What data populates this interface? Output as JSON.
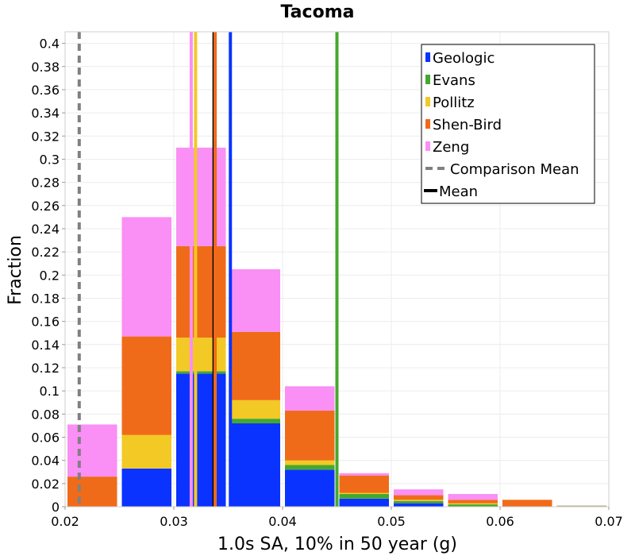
{
  "chart_data": {
    "type": "bar",
    "stacked": true,
    "title": "Tacoma",
    "xlabel": "1.0s SA, 10% in 50 year (g)",
    "ylabel": "Fraction",
    "xlim": [
      0.02,
      0.07
    ],
    "ylim": [
      0,
      0.41
    ],
    "grid": true,
    "legend_position": "top-right",
    "x_ticks": [
      "0.02",
      "0.03",
      "0.04",
      "0.05",
      "0.06",
      "0.07"
    ],
    "y_ticks": [
      "0",
      "0.02",
      "0.04",
      "0.06",
      "0.08",
      "0.1",
      "0.12",
      "0.14",
      "0.16",
      "0.18",
      "0.2",
      "0.22",
      "0.24",
      "0.26",
      "0.28",
      "0.3",
      "0.32",
      "0.34",
      "0.36",
      "0.38",
      "0.4"
    ],
    "bins": [
      {
        "x0": 0.02,
        "x1": 0.025
      },
      {
        "x0": 0.025,
        "x1": 0.03
      },
      {
        "x0": 0.03,
        "x1": 0.035
      },
      {
        "x0": 0.035,
        "x1": 0.04
      },
      {
        "x0": 0.04,
        "x1": 0.045
      },
      {
        "x0": 0.045,
        "x1": 0.05
      },
      {
        "x0": 0.05,
        "x1": 0.055
      },
      {
        "x0": 0.055,
        "x1": 0.06
      },
      {
        "x0": 0.06,
        "x1": 0.065
      },
      {
        "x0": 0.065,
        "x1": 0.07
      }
    ],
    "series": [
      {
        "name": "Geologic",
        "color": "#0a33ff",
        "values": [
          0.0,
          0.033,
          0.115,
          0.072,
          0.032,
          0.007,
          0.003,
          0.0,
          0.0,
          0.0
        ]
      },
      {
        "name": "Evans",
        "color": "#45a82e",
        "values": [
          0.0,
          0.0,
          0.002,
          0.004,
          0.004,
          0.004,
          0.002,
          0.002,
          0.0,
          0.0
        ]
      },
      {
        "name": "Pollitz",
        "color": "#f2c925",
        "values": [
          0.0,
          0.029,
          0.029,
          0.016,
          0.004,
          0.001,
          0.001,
          0.001,
          0.0,
          0.0
        ]
      },
      {
        "name": "Shen-Bird",
        "color": "#f06b19",
        "values": [
          0.026,
          0.085,
          0.079,
          0.059,
          0.043,
          0.015,
          0.004,
          0.003,
          0.006,
          0.0
        ]
      },
      {
        "name": "Zeng",
        "color": "#fa8ff5",
        "values": [
          0.045,
          0.103,
          0.085,
          0.054,
          0.021,
          0.002,
          0.005,
          0.005,
          0.0,
          0.0
        ]
      }
    ],
    "vertical_lines": [
      {
        "name": "Comparison Mean",
        "x": 0.0213,
        "color": "#808080",
        "style": "dashed"
      },
      {
        "name": "Mean",
        "x": 0.0337,
        "color": "#000000",
        "style": "solid"
      },
      {
        "name": "Geologic",
        "x": 0.0352,
        "color": "#0a33ff",
        "style": "solid",
        "legend": false
      },
      {
        "name": "Evans",
        "x": 0.045,
        "color": "#45a82e",
        "style": "solid",
        "legend": false
      },
      {
        "name": "Pollitz",
        "x": 0.032,
        "color": "#f2c925",
        "style": "solid",
        "legend": false
      },
      {
        "name": "Shen-Bird",
        "x": 0.0338,
        "color": "#f06b19",
        "style": "solid",
        "legend": false
      },
      {
        "name": "Zeng",
        "x": 0.0316,
        "color": "#fa8ff5",
        "style": "solid",
        "legend": false
      }
    ],
    "legend": [
      {
        "label": "Geologic",
        "kind": "box",
        "color": "#0a33ff"
      },
      {
        "label": "Evans",
        "kind": "box",
        "color": "#45a82e"
      },
      {
        "label": "Pollitz",
        "kind": "box",
        "color": "#f2c925"
      },
      {
        "label": "Shen-Bird",
        "kind": "box",
        "color": "#f06b19"
      },
      {
        "label": "Zeng",
        "kind": "box",
        "color": "#fa8ff5"
      },
      {
        "label": "Comparison Mean",
        "kind": "dashed",
        "color": "#808080"
      },
      {
        "label": "Mean",
        "kind": "line",
        "color": "#000000"
      }
    ]
  }
}
